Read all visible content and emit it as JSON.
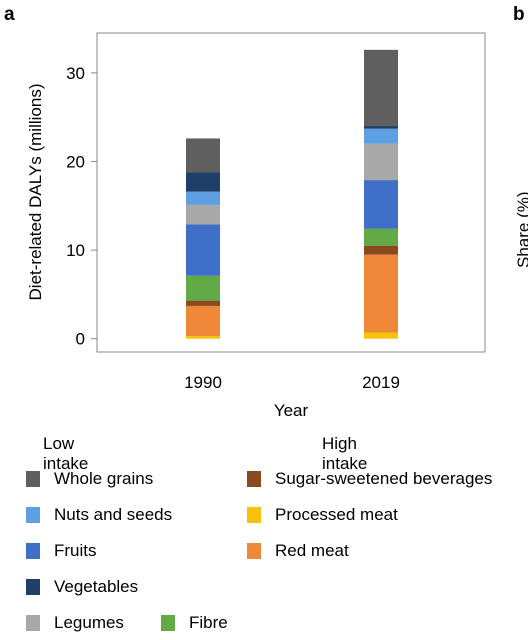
{
  "panel_labels": {
    "left": "a",
    "right": "b"
  },
  "right_panel_fragment_text": "Share (%)",
  "chart_data": {
    "type": "bar",
    "stacked": true,
    "categories": [
      "1990",
      "2019"
    ],
    "xlabel": "Year",
    "ylabel": "Diet-related DALYs (millions)",
    "ylim": [
      -1.5,
      34.5
    ],
    "yticks": [
      0,
      10,
      20,
      30
    ],
    "grid": false,
    "series": [
      {
        "name": "Processed meat",
        "color": "#f9c20a",
        "values": [
          0.3,
          0.7
        ]
      },
      {
        "name": "Red meat",
        "color": "#f0883a",
        "values": [
          3.4,
          8.8
        ]
      },
      {
        "name": "Sugar-sweetened beverages",
        "color": "#8a4a1f",
        "values": [
          0.6,
          1.0
        ]
      },
      {
        "name": "Fibre",
        "color": "#62aa45",
        "values": [
          2.8,
          1.9
        ]
      },
      {
        "name": "Fruits",
        "color": "#3f6fc7",
        "values": [
          5.8,
          5.5
        ]
      },
      {
        "name": "Legumes",
        "color": "#a8a8a8",
        "values": [
          2.2,
          4.1
        ]
      },
      {
        "name": "Nuts and seeds",
        "color": "#5d9fe0",
        "values": [
          1.5,
          1.7
        ]
      },
      {
        "name": "Vegetables",
        "color": "#1f3f68",
        "values": [
          2.2,
          0.3
        ]
      },
      {
        "name": "Whole grains",
        "color": "#5f5f5f",
        "values": [
          3.8,
          8.6
        ]
      }
    ]
  },
  "legend": {
    "low_heading": "Low intake",
    "high_heading": "High intake",
    "low_items": [
      {
        "label": "Whole grains",
        "color": "#5f5f5f"
      },
      {
        "label": "Nuts and seeds",
        "color": "#5d9fe0"
      },
      {
        "label": "Fruits",
        "color": "#3f6fc7"
      },
      {
        "label": "Vegetables",
        "color": "#1f3f68"
      },
      {
        "label": "Legumes",
        "color": "#a8a8a8"
      },
      {
        "label": "Fibre",
        "color": "#62aa45"
      }
    ],
    "high_items": [
      {
        "label": "Sugar-sweetened beverages",
        "color": "#8a4a1f"
      },
      {
        "label": "Processed meat",
        "color": "#f9c20a"
      },
      {
        "label": "Red meat",
        "color": "#f0883a"
      }
    ]
  }
}
